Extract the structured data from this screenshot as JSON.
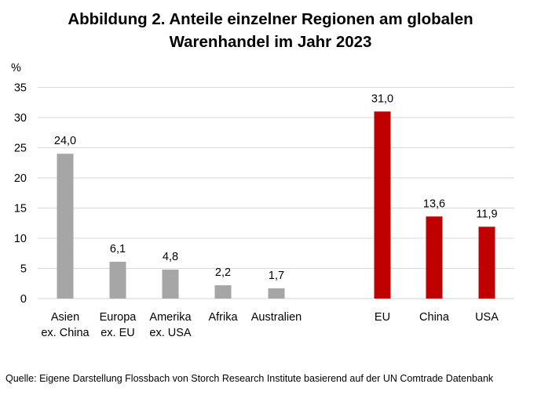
{
  "title_line1": "Abbildung 2. Anteile einzelner Regionen am globalen",
  "title_line2": "Warenhandel im Jahr 2023",
  "source": "Quelle: Eigene Darstellung Flossbach von Storch Research Institute basierend auf der UN Comtrade Datenbank",
  "colors": {
    "grey": "#a6a6a6",
    "red": "#c00000",
    "grid": "#d9d9d9"
  },
  "chart_data": {
    "type": "bar",
    "ylabel": "%",
    "ylim": [
      0,
      35
    ],
    "yticks": [
      0,
      5,
      10,
      15,
      20,
      25,
      30,
      35
    ],
    "grid": true,
    "groups": [
      {
        "color": "grey",
        "bars": [
          {
            "label": [
              "Asien",
              "ex. China"
            ],
            "value": 24.0,
            "value_label": "24,0"
          },
          {
            "label": [
              "Europa",
              "ex. EU"
            ],
            "value": 6.1,
            "value_label": "6,1"
          },
          {
            "label": [
              "Amerika",
              "ex. USA"
            ],
            "value": 4.8,
            "value_label": "4,8"
          },
          {
            "label": [
              "Afrika"
            ],
            "value": 2.2,
            "value_label": "2,2"
          },
          {
            "label": [
              "Australien"
            ],
            "value": 1.7,
            "value_label": "1,7"
          }
        ]
      },
      {
        "color": "red",
        "bars": [
          {
            "label": [
              "EU"
            ],
            "value": 31.0,
            "value_label": "31,0"
          },
          {
            "label": [
              "China"
            ],
            "value": 13.6,
            "value_label": "13,6"
          },
          {
            "label": [
              "USA"
            ],
            "value": 11.9,
            "value_label": "11,9"
          }
        ]
      }
    ]
  }
}
